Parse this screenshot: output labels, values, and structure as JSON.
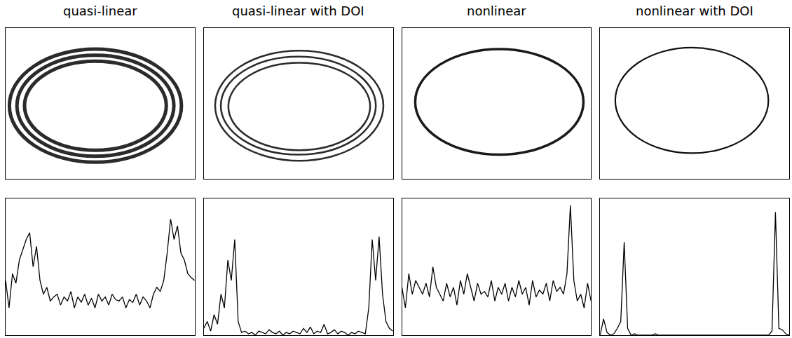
{
  "chart_data": [
    {
      "title": "quasi-linear",
      "type": "line",
      "color": "#000000",
      "xlim": [
        0,
        55
      ],
      "ylim": [
        0,
        100
      ],
      "tick_labels": false,
      "values": [
        40,
        20,
        45,
        38,
        55,
        62,
        70,
        75,
        50,
        65,
        40,
        30,
        35,
        25,
        28,
        30,
        22,
        28,
        25,
        32,
        20,
        28,
        24,
        30,
        22,
        27,
        20,
        30,
        25,
        28,
        22,
        30,
        26,
        25,
        28,
        20,
        26,
        24,
        30,
        22,
        28,
        25,
        20,
        30,
        35,
        32,
        40,
        60,
        85,
        70,
        80,
        60,
        55,
        45,
        42,
        40
      ],
      "image": {
        "type": "ellipse",
        "color": "#2b2b2b",
        "xlim": [
          0,
          100
        ],
        "ylim": [
          0,
          100
        ],
        "tick_labels": false,
        "rings": [
          [
            2,
            93,
            11,
            86
          ],
          [
            6,
            89,
            15,
            82
          ],
          [
            10,
            85,
            19,
            78
          ]
        ]
      }
    },
    {
      "title": "quasi-linear with DOI",
      "type": "line",
      "color": "#000000",
      "xlim": [
        0,
        55
      ],
      "ylim": [
        0,
        100
      ],
      "tick_labels": false,
      "values": [
        5,
        10,
        3,
        15,
        8,
        30,
        20,
        55,
        40,
        70,
        10,
        2,
        3,
        1,
        2,
        0,
        3,
        2,
        1,
        4,
        2,
        1,
        3,
        0,
        2,
        1,
        3,
        2,
        1,
        5,
        2,
        6,
        1,
        3,
        2,
        8,
        1,
        2,
        4,
        1,
        3,
        2,
        0,
        2,
        1,
        3,
        2,
        1,
        20,
        70,
        40,
        72,
        30,
        10,
        5,
        3
      ],
      "image": {
        "type": "ellipse",
        "color": "#2b2b2b",
        "xlim": [
          0,
          100
        ],
        "ylim": [
          0,
          100
        ],
        "tick_labels": false,
        "rings": [
          [
            6,
            95,
            12,
            85
          ],
          [
            9,
            91,
            16,
            81
          ],
          [
            13,
            88,
            19,
            77
          ]
        ]
      }
    },
    {
      "title": "nonlinear",
      "type": "line",
      "color": "#000000",
      "xlim": [
        0,
        55
      ],
      "ylim": [
        0,
        100
      ],
      "tick_labels": false,
      "values": [
        35,
        20,
        45,
        30,
        40,
        35,
        30,
        38,
        28,
        50,
        35,
        30,
        25,
        38,
        28,
        35,
        22,
        40,
        30,
        45,
        35,
        25,
        38,
        30,
        32,
        28,
        40,
        25,
        35,
        30,
        38,
        25,
        35,
        28,
        40,
        30,
        35,
        22,
        40,
        28,
        33,
        30,
        38,
        25,
        40,
        32,
        35,
        30,
        45,
        95,
        40,
        25,
        30,
        20,
        38,
        25
      ],
      "image": {
        "type": "ellipse",
        "color": "#1a1a1a",
        "xlim": [
          0,
          100
        ],
        "ylim": [
          0,
          100
        ],
        "tick_labels": false,
        "rings": [
          [
            7,
            96,
            16,
            86
          ]
        ]
      }
    },
    {
      "title": "nonlinear with DOI",
      "type": "line",
      "color": "#000000",
      "xlim": [
        0,
        55
      ],
      "ylim": [
        0,
        100
      ],
      "tick_labels": false,
      "values": [
        0,
        12,
        2,
        0,
        1,
        5,
        10,
        68,
        5,
        0,
        1,
        0,
        0,
        0,
        0,
        0,
        1,
        0,
        0,
        0,
        0,
        0,
        0,
        0,
        0,
        0,
        0,
        0,
        0,
        0,
        0,
        0,
        0,
        0,
        0,
        0,
        0,
        0,
        0,
        0,
        0,
        0,
        0,
        0,
        0,
        0,
        0,
        0,
        0,
        0,
        3,
        90,
        5,
        4,
        1,
        0
      ],
      "image": {
        "type": "ellipse",
        "color": "#111111",
        "xlim": [
          0,
          100
        ],
        "ylim": [
          0,
          100
        ],
        "tick_labels": false,
        "rings": [
          [
            8,
            89,
            17,
            87
          ]
        ]
      }
    }
  ]
}
